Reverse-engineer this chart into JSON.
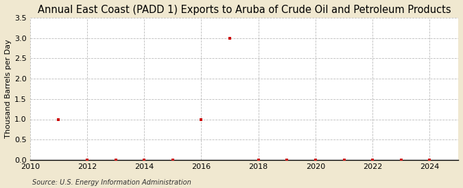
{
  "title": "Annual East Coast (PADD 1) Exports to Aruba of Crude Oil and Petroleum Products",
  "ylabel": "Thousand Barrels per Day",
  "source": "Source: U.S. Energy Information Administration",
  "outer_background": "#f0e8d0",
  "plot_background": "#ffffff",
  "years": [
    2011,
    2012,
    2013,
    2014,
    2015,
    2016,
    2017,
    2018,
    2019,
    2020,
    2021,
    2022,
    2023,
    2024
  ],
  "values": [
    1.0,
    0.0,
    0.0,
    0.0,
    0.0,
    1.0,
    3.0,
    0.0,
    0.0,
    0.0,
    0.0,
    0.0,
    0.0,
    0.0
  ],
  "marker_color": "#cc0000",
  "marker_size": 3.5,
  "xlim": [
    2010,
    2025
  ],
  "ylim": [
    0.0,
    3.5
  ],
  "yticks": [
    0.0,
    0.5,
    1.0,
    1.5,
    2.0,
    2.5,
    3.0,
    3.5
  ],
  "xticks": [
    2010,
    2012,
    2014,
    2016,
    2018,
    2020,
    2022,
    2024
  ],
  "title_fontsize": 10.5,
  "axis_label_fontsize": 8,
  "tick_fontsize": 8,
  "source_fontsize": 7
}
